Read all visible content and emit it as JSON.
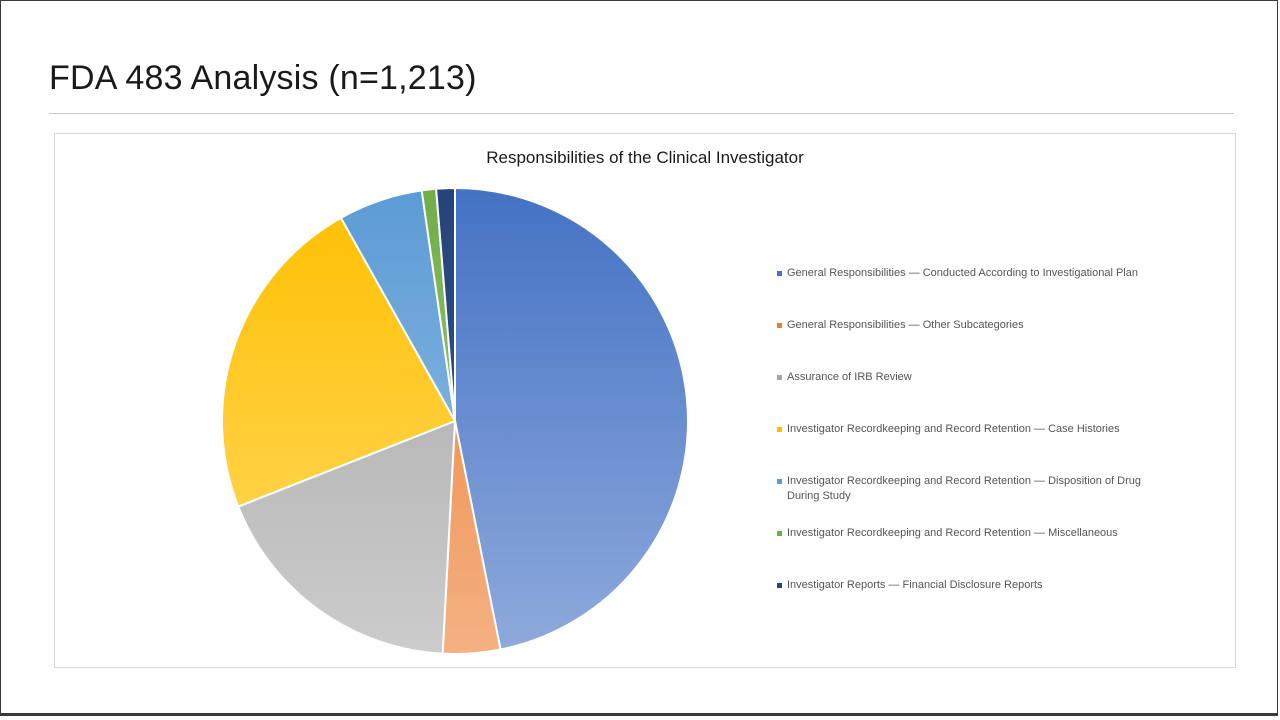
{
  "slide": {
    "title": "FDA 483 Analysis (n=1,213)"
  },
  "chart_data": {
    "type": "pie",
    "title": "Responsibilities of the Clinical Investigator",
    "legend_position": "right",
    "start_angle": "12 o'clock",
    "direction": "clockwise",
    "categories": [
      "General Responsibilities — Conducted According to Investigational Plan",
      "General Responsibilities — Other Subcategories",
      "Assurance of IRB Review",
      "Investigator Recordkeeping and Record Retention — Case Histories",
      "Investigator Recordkeeping and Record Retention — Disposition of Drug During Study",
      "Investigator Recordkeeping and Record Retention — Miscellaneous",
      "Investigator Reports — Financial Disclosure Reports"
    ],
    "values": [
      47.2,
      4.0,
      18.3,
      23.0,
      5.9,
      1.0,
      1.3
    ],
    "colors": [
      {
        "top": "#4472c4",
        "bottom": "#8faadc"
      },
      {
        "top": "#ed7d31",
        "bottom": "#f4b183"
      },
      {
        "top": "#a5a5a5",
        "bottom": "#cccccc"
      },
      {
        "top": "#ffc000",
        "bottom": "#ffd966"
      },
      {
        "top": "#5b9bd5",
        "bottom": "#9dc3e6"
      },
      {
        "top": "#70ad47",
        "bottom": "#a9d18e"
      },
      {
        "top": "#264478",
        "bottom": "#2f5597"
      }
    ],
    "legend_swatch_colors": [
      "#4472c4",
      "#ed7d31",
      "#a5a5a5",
      "#ffc000",
      "#5b9bd5",
      "#70ad47",
      "#264478"
    ]
  }
}
